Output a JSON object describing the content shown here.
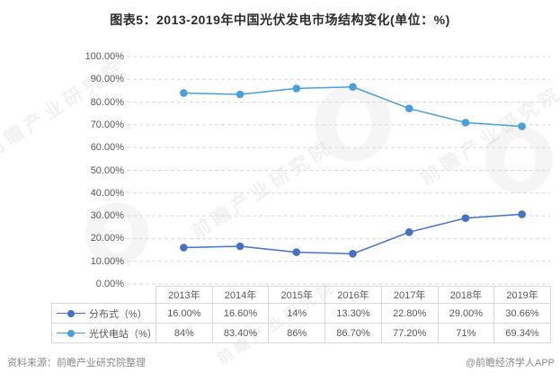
{
  "title": "图表5：2013-2019年中国光伏发电市场结构变化(单位：%)",
  "chart_data": {
    "type": "line",
    "categories": [
      "2013年",
      "2014年",
      "2015年",
      "2016年",
      "2017年",
      "2018年",
      "2019年"
    ],
    "series": [
      {
        "name": "分布式（%）",
        "values": [
          16.0,
          16.6,
          14,
          13.3,
          22.8,
          29.0,
          30.66
        ],
        "display_values": [
          "16.00%",
          "16.60%",
          "14%",
          "13.30%",
          "22.80%",
          "29.00%",
          "30.66%"
        ],
        "color": "#4472c4"
      },
      {
        "name": "光伏电站（%）",
        "values": [
          84,
          83.4,
          86,
          86.7,
          77.2,
          71,
          69.34
        ],
        "display_values": [
          "84%",
          "83.40%",
          "86%",
          "86.70%",
          "77.20%",
          "71%",
          "69.34%"
        ],
        "color": "#47a0da"
      }
    ],
    "title": "图表5：2013-2019年中国光伏发电市场结构变化(单位：%)",
    "xlabel": "",
    "ylabel": "",
    "ylim": [
      0,
      100
    ],
    "ytick_labels": [
      "0.00%",
      "10.00%",
      "20.00%",
      "30.00%",
      "40.00%",
      "50.00%",
      "60.00%",
      "70.00%",
      "80.00%",
      "90.00%",
      "100.00%"
    ],
    "grid": "horizontal-dashed",
    "gridline_color": "#d9d9d9",
    "legend_position": "table-left"
  },
  "footer": {
    "source": "资料来源：前瞻产业研究院整理",
    "credit": "@前瞻经济学人APP"
  },
  "watermark": {
    "text": "前瞻产业研究院",
    "logo_name": "qianzhan-logo"
  }
}
